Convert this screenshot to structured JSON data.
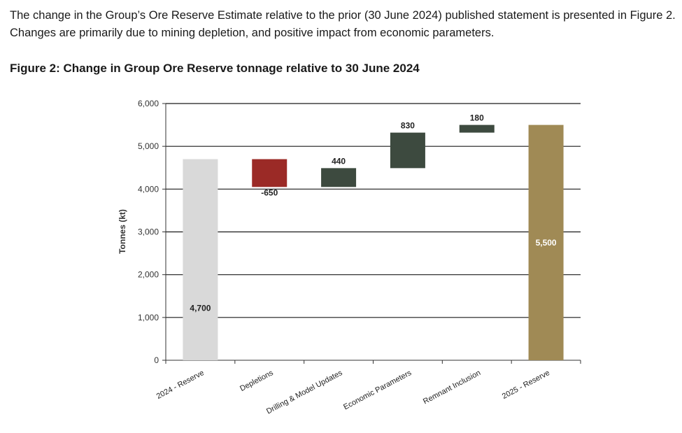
{
  "intro_text": "The change in the Group’s Ore Reserve Estimate relative to the prior (30 June 2024) published statement is presented in Figure 2. Changes are primarily due to mining depletion, and positive impact from economic parameters.",
  "figure_title": "Figure 2: Change in Group Ore Reserve tonnage relative to 30 June 2024",
  "chart_data": {
    "type": "bar",
    "subtype": "waterfall",
    "ylabel": "Tonnes (kt)",
    "xlabel": "",
    "ylim": [
      0,
      6000
    ],
    "yticks": [
      0,
      1000,
      2000,
      3000,
      4000,
      5000,
      6000
    ],
    "ytick_labels": [
      "0",
      "1,000",
      "2,000",
      "3,000",
      "4,000",
      "5,000",
      "6,000"
    ],
    "grid": true,
    "categories": [
      "2024 - Reserve",
      "Depletions",
      "Drilling & Model Updates",
      "Economic Parameters",
      "Remnant Inclusion",
      "2025 - Reserve"
    ],
    "values": [
      4700,
      -650,
      440,
      830,
      180,
      5500
    ],
    "bar_kind": [
      "total",
      "delta",
      "delta",
      "delta",
      "delta",
      "total"
    ],
    "data_labels": [
      "4,700",
      "-650",
      "440",
      "830",
      "180",
      "5,500"
    ],
    "colors": [
      "#d9d9d9",
      "#9b2a26",
      "#3d4a3f",
      "#3d4a3f",
      "#3d4a3f",
      "#a08a55"
    ],
    "label_colors": [
      "#222222",
      "#222222",
      "#222222",
      "#222222",
      "#222222",
      "#ffffff"
    ]
  }
}
